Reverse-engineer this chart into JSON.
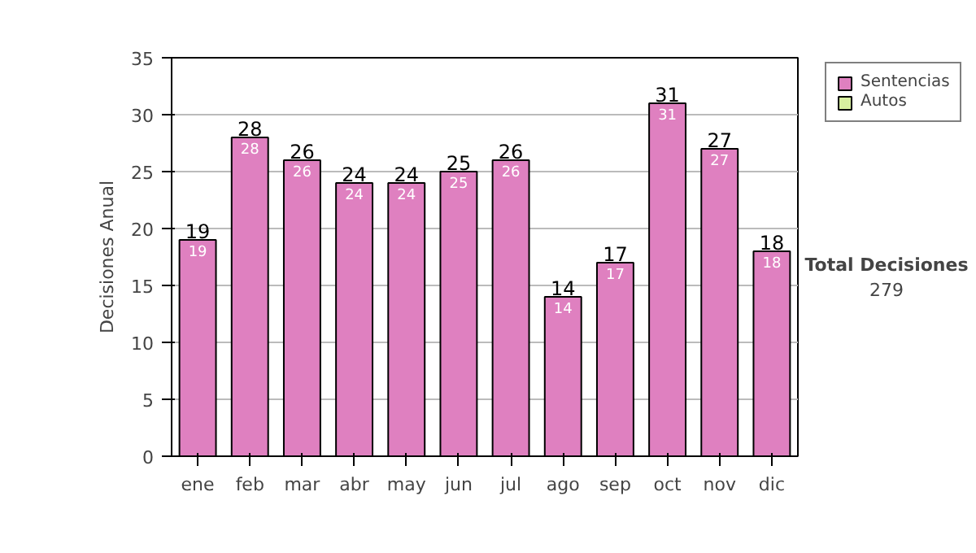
{
  "chart_data": {
    "type": "bar",
    "ylabel": "Decisiones Anual",
    "categories": [
      "ene",
      "feb",
      "mar",
      "abr",
      "may",
      "jun",
      "jul",
      "ago",
      "sep",
      "oct",
      "nov",
      "dic"
    ],
    "series": [
      {
        "name": "Sentencias",
        "color": "#df80c0",
        "values": [
          19,
          28,
          26,
          24,
          24,
          25,
          26,
          14,
          17,
          31,
          27,
          18
        ]
      },
      {
        "name": "Autos",
        "color": "#d8f0a0",
        "values": [
          null,
          null,
          null,
          null,
          null,
          null,
          null,
          null,
          null,
          null,
          null,
          null
        ]
      }
    ],
    "stacked": true,
    "data_labels": true,
    "totals": [
      "19",
      "28",
      "26",
      "24",
      "24",
      "25",
      "26",
      "14",
      "17",
      "31",
      "27",
      "18"
    ],
    "ylim": [
      0,
      35
    ],
    "yticks": [
      0,
      5,
      10,
      15,
      20,
      25,
      30,
      35
    ],
    "grid": "y",
    "legend": "right",
    "annotations": [
      "Total Decisiones",
      "279"
    ]
  }
}
